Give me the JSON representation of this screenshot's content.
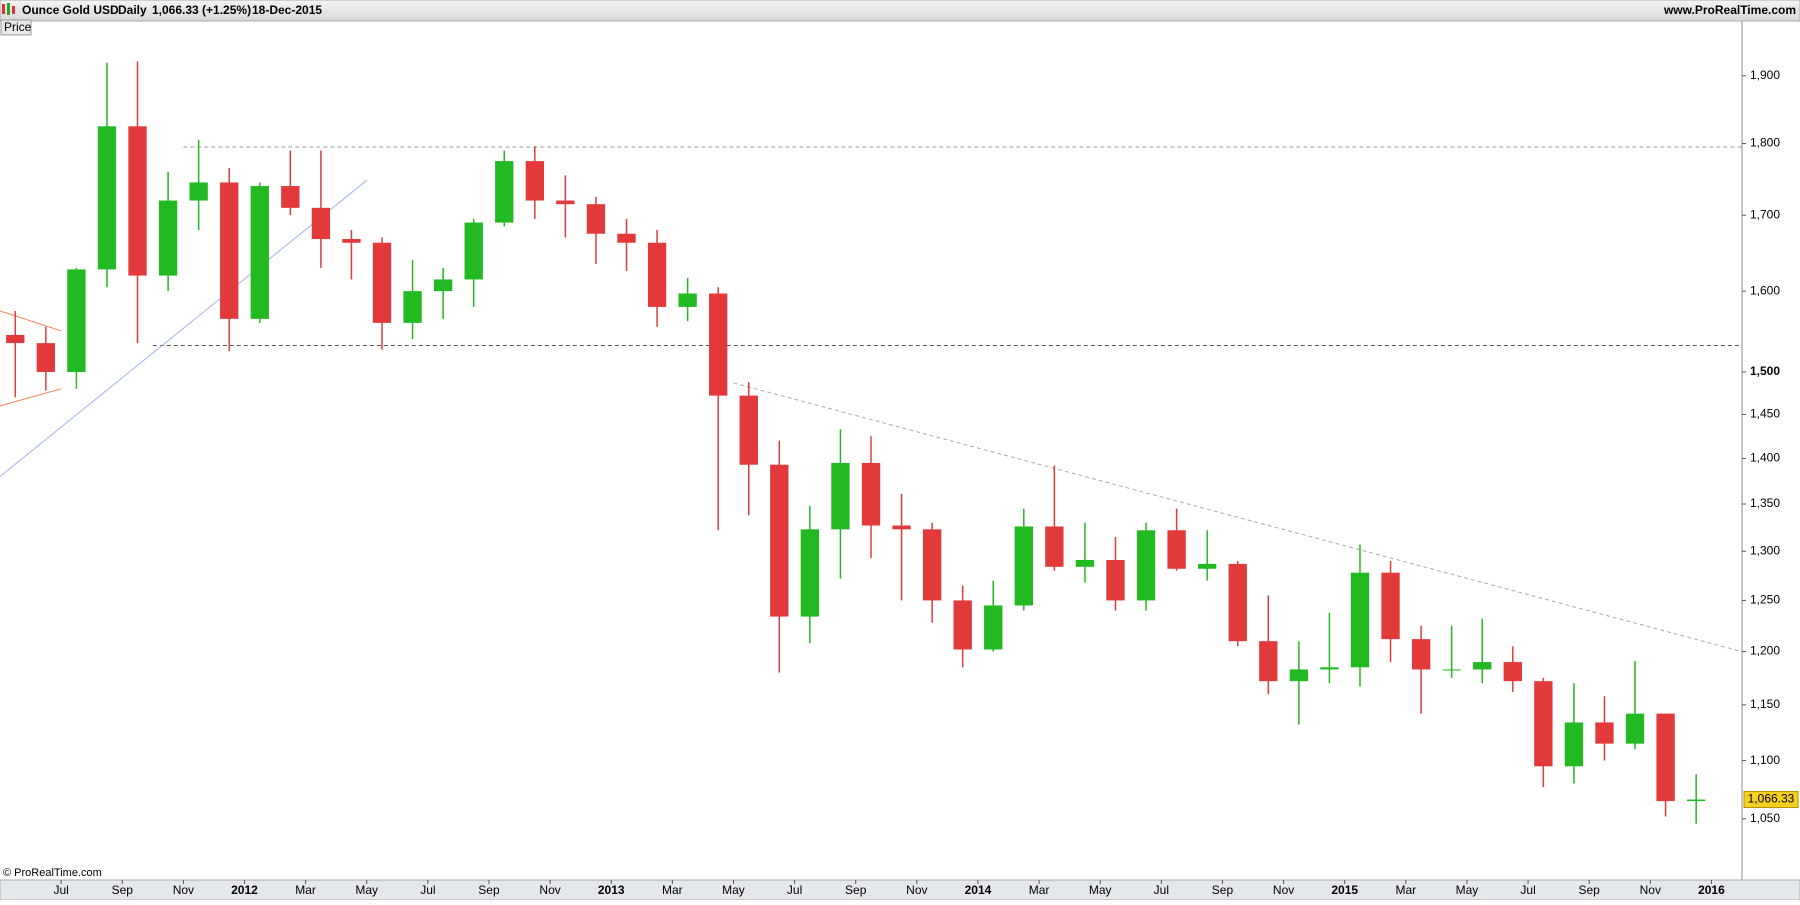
{
  "chart_data": {
    "type": "candlestick",
    "title": "Ounce Gold USD",
    "interval": "Daily",
    "price_change": "1,066.33 (+1.25%)",
    "date": "18-Dec-2015",
    "source": "www.ProRealTime.com",
    "pane_label": "Price",
    "copyright": "© ProRealTime.com",
    "log_scale": true,
    "up_color": "#22b922",
    "down_color": "#e23a3a",
    "x": [
      "2011-05",
      "2011-06",
      "2011-07",
      "2011-08",
      "2011-09",
      "2011-10",
      "2011-11",
      "2011-12",
      "2012-01",
      "2012-02",
      "2012-03",
      "2012-04",
      "2012-05",
      "2012-06",
      "2012-07",
      "2012-08",
      "2012-09",
      "2012-10",
      "2012-11",
      "2012-12",
      "2013-01",
      "2013-02",
      "2013-03",
      "2013-04",
      "2013-05",
      "2013-06",
      "2013-07",
      "2013-08",
      "2013-09",
      "2013-10",
      "2013-11",
      "2013-12",
      "2014-01",
      "2014-02",
      "2014-03",
      "2014-04",
      "2014-05",
      "2014-06",
      "2014-07",
      "2014-08",
      "2014-09",
      "2014-10",
      "2014-11",
      "2014-12",
      "2015-01",
      "2015-02",
      "2015-03",
      "2015-04",
      "2015-05",
      "2015-06",
      "2015-07",
      "2015-08",
      "2015-09",
      "2015-10",
      "2015-11",
      "2015-12"
    ],
    "open": [
      1545,
      1535,
      1500,
      1628,
      1825,
      1620,
      1720,
      1745,
      1565,
      1740,
      1710,
      1668,
      1663,
      1560,
      1600,
      1615,
      1690,
      1775,
      1720,
      1715,
      1675,
      1663,
      1580,
      1597,
      1472,
      1393,
      1234,
      1323,
      1395,
      1327,
      1323,
      1250,
      1202,
      1245,
      1326,
      1284,
      1291,
      1250,
      1322,
      1282,
      1287,
      1210,
      1172,
      1183,
      1185,
      1278,
      1212,
      1183,
      1183,
      1190,
      1172,
      1095,
      1134,
      1115,
      1142,
      1065
    ],
    "high": [
      1575,
      1555,
      1630,
      1920,
      1922,
      1760,
      1805,
      1765,
      1745,
      1790,
      1790,
      1680,
      1670,
      1640,
      1630,
      1695,
      1790,
      1796,
      1755,
      1725,
      1695,
      1680,
      1617,
      1605,
      1488,
      1420,
      1348,
      1433,
      1425,
      1361,
      1330,
      1265,
      1270,
      1345,
      1392,
      1330,
      1315,
      1330,
      1345,
      1322,
      1290,
      1255,
      1210,
      1238,
      1307,
      1290,
      1225,
      1225,
      1232,
      1205,
      1175,
      1170,
      1158,
      1191,
      1142,
      1088
    ],
    "low": [
      1470,
      1478,
      1480,
      1605,
      1535,
      1600,
      1680,
      1525,
      1560,
      1700,
      1630,
      1615,
      1527,
      1540,
      1565,
      1580,
      1685,
      1695,
      1670,
      1635,
      1626,
      1555,
      1562,
      1322,
      1338,
      1180,
      1208,
      1272,
      1293,
      1250,
      1228,
      1185,
      1200,
      1240,
      1280,
      1268,
      1240,
      1240,
      1280,
      1270,
      1205,
      1160,
      1132,
      1170,
      1167,
      1190,
      1142,
      1175,
      1170,
      1162,
      1077,
      1080,
      1100,
      1110,
      1052,
      1046
    ],
    "close": [
      1535,
      1500,
      1628,
      1825,
      1620,
      1720,
      1745,
      1565,
      1740,
      1710,
      1668,
      1663,
      1560,
      1600,
      1615,
      1690,
      1775,
      1720,
      1715,
      1675,
      1663,
      1580,
      1597,
      1472,
      1393,
      1234,
      1323,
      1395,
      1327,
      1323,
      1250,
      1202,
      1245,
      1326,
      1284,
      1291,
      1250,
      1322,
      1282,
      1287,
      1210,
      1172,
      1183,
      1185,
      1278,
      1212,
      1183,
      1183,
      1190,
      1172,
      1095,
      1134,
      1115,
      1142,
      1065,
      1066.33
    ],
    "last": {
      "value": 1066.33,
      "label": "1,066.33"
    },
    "xlim": [
      "2011-05",
      "2016-02"
    ],
    "xticks": [
      {
        "value": "2011-07",
        "label": "Jul"
      },
      {
        "value": "2011-09",
        "label": "Sep"
      },
      {
        "value": "2011-11",
        "label": "Nov"
      },
      {
        "value": "2012-01",
        "label": "2012"
      },
      {
        "value": "2012-03",
        "label": "Mar"
      },
      {
        "value": "2012-05",
        "label": "May"
      },
      {
        "value": "2012-07",
        "label": "Jul"
      },
      {
        "value": "2012-09",
        "label": "Sep"
      },
      {
        "value": "2012-11",
        "label": "Nov"
      },
      {
        "value": "2013-01",
        "label": "2013"
      },
      {
        "value": "2013-03",
        "label": "Mar"
      },
      {
        "value": "2013-05",
        "label": "May"
      },
      {
        "value": "2013-07",
        "label": "Jul"
      },
      {
        "value": "2013-09",
        "label": "Sep"
      },
      {
        "value": "2013-11",
        "label": "Nov"
      },
      {
        "value": "2014-01",
        "label": "2014"
      },
      {
        "value": "2014-03",
        "label": "Mar"
      },
      {
        "value": "2014-05",
        "label": "May"
      },
      {
        "value": "2014-07",
        "label": "Jul"
      },
      {
        "value": "2014-09",
        "label": "Sep"
      },
      {
        "value": "2014-11",
        "label": "Nov"
      },
      {
        "value": "2015-01",
        "label": "2015"
      },
      {
        "value": "2015-03",
        "label": "Mar"
      },
      {
        "value": "2015-05",
        "label": "May"
      },
      {
        "value": "2015-07",
        "label": "Jul"
      },
      {
        "value": "2015-09",
        "label": "Sep"
      },
      {
        "value": "2015-11",
        "label": "Nov"
      },
      {
        "value": "2016-01",
        "label": "2016"
      }
    ],
    "ylim": [
      1000,
      1985
    ],
    "yticks": [
      {
        "value": 1050,
        "label": "1,050"
      },
      {
        "value": 1100,
        "label": "1,100"
      },
      {
        "value": 1150,
        "label": "1,150"
      },
      {
        "value": 1200,
        "label": "1,200"
      },
      {
        "value": 1250,
        "label": "1,250"
      },
      {
        "value": 1300,
        "label": "1,300"
      },
      {
        "value": 1350,
        "label": "1,350"
      },
      {
        "value": 1400,
        "label": "1,400"
      },
      {
        "value": 1450,
        "label": "1,450"
      },
      {
        "value": 1500,
        "label": "1,500"
      },
      {
        "value": 1600,
        "label": "1,600"
      },
      {
        "value": 1700,
        "label": "1,700"
      },
      {
        "value": 1800,
        "label": "1,800"
      },
      {
        "value": 1900,
        "label": "1,900"
      }
    ],
    "lines": [
      {
        "x": [
          "2011-11",
          "2016-02"
        ],
        "y": [
          1795,
          1795
        ],
        "color": "#999999",
        "dash": true
      },
      {
        "x": [
          "2011-10",
          "2016-02"
        ],
        "y": [
          1532,
          1532
        ],
        "color": "#555555",
        "dash": true
      },
      {
        "x": [
          "2013-05",
          "2016-02"
        ],
        "y": [
          1487,
          1200
        ],
        "color": "#aaaaaa",
        "dash": true
      },
      {
        "x": [
          "2011-05",
          "2012-05"
        ],
        "y": [
          1380,
          1748
        ],
        "color": "#9fb4f0",
        "dash": false
      },
      {
        "x": [
          "2011-05",
          "2011-07"
        ],
        "y": [
          1575,
          1550
        ],
        "color": "#f08050",
        "dash": false
      },
      {
        "x": [
          "2011-05",
          "2011-07"
        ],
        "y": [
          1460,
          1480
        ],
        "color": "#f08050",
        "dash": false
      }
    ]
  }
}
